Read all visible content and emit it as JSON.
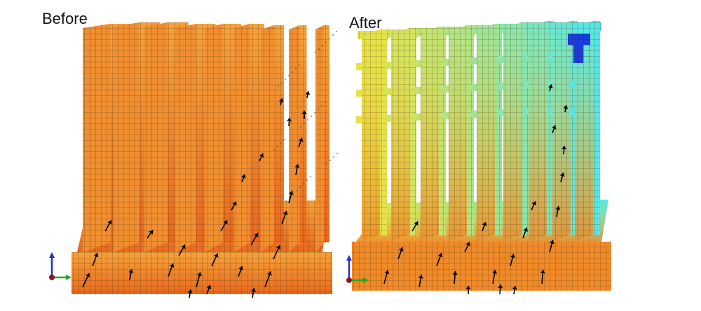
{
  "figure": {
    "panels": [
      {
        "id": "before",
        "title": "Before"
      },
      {
        "id": "after",
        "title": "After"
      }
    ],
    "colors": {
      "before_fill_light": "#f5a23a",
      "before_fill_dark": "#e8681e",
      "after_top_left": "#e6e24a",
      "after_top_right": "#55e6e6",
      "after_hotspot": "#1a3cd8",
      "after_bottom": "#f08a28",
      "grid_line": "#3a2a10",
      "arrow": "#000000"
    },
    "axis_icon": {
      "z_axis_color": "#1f2fd6",
      "y_axis_color": "#1fa82f",
      "origin_color": "#8b1a1a"
    }
  }
}
